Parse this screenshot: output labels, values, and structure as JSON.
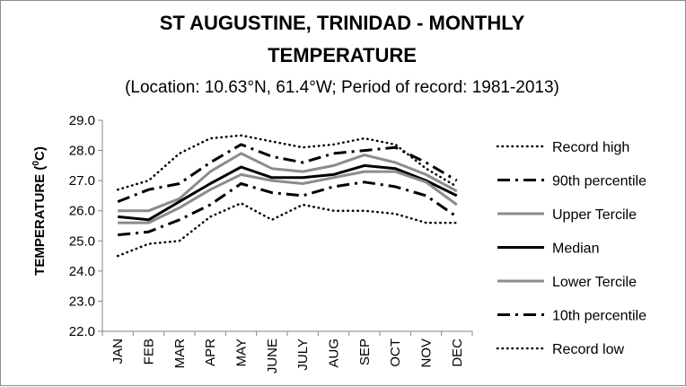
{
  "chart_data": {
    "type": "line",
    "title": "ST AUGUSTINE, TRINIDAD - MONTHLY TEMPERATURE",
    "title_lines": [
      "ST AUGUSTINE, TRINIDAD - MONTHLY",
      "TEMPERATURE"
    ],
    "subtitle": "(Location: 10.63°N, 61.4°W; Period of record: 1981-2013)",
    "ylabel": "TEMPERATURE (⁰C)",
    "ylabel_main": "TEMPERATURE (",
    "ylabel_sup": "0",
    "ylabel_close": "C)",
    "xlabel": "",
    "categories": [
      "JAN",
      "FEB",
      "MAR",
      "APR",
      "MAY",
      "JUNE",
      "JULY",
      "AUG",
      "SEP",
      "OCT",
      "NOV",
      "DEC"
    ],
    "ylim": [
      22.0,
      29.0
    ],
    "yticks": [
      "22.0",
      "23.0",
      "24.0",
      "25.0",
      "26.0",
      "27.0",
      "28.0",
      "29.0"
    ],
    "ytick_values": [
      22,
      23,
      24,
      25,
      26,
      27,
      28,
      29
    ],
    "grid": false,
    "legend_position": "right",
    "series": [
      {
        "name": "Record high",
        "style": "dotted",
        "color": "#000000",
        "values": [
          26.7,
          27.0,
          27.9,
          28.4,
          28.5,
          28.3,
          28.1,
          28.2,
          28.4,
          28.2,
          27.4,
          26.8
        ]
      },
      {
        "name": "90th percentile",
        "style": "dashdot",
        "color": "#000000",
        "values": [
          26.3,
          26.7,
          26.9,
          27.6,
          28.2,
          27.8,
          27.6,
          27.9,
          28.0,
          28.1,
          27.6,
          27.0
        ]
      },
      {
        "name": "Upper Tercile",
        "style": "solid",
        "color": "#8c8c8c",
        "values": [
          26.0,
          26.0,
          26.4,
          27.3,
          27.9,
          27.4,
          27.3,
          27.5,
          27.85,
          27.6,
          27.2,
          26.65
        ]
      },
      {
        "name": "Median",
        "style": "solid",
        "color": "#000000",
        "values": [
          25.8,
          25.7,
          26.3,
          26.9,
          27.45,
          27.1,
          27.1,
          27.2,
          27.5,
          27.4,
          27.0,
          26.5
        ]
      },
      {
        "name": "Lower Tercile",
        "style": "solid",
        "color": "#8c8c8c",
        "values": [
          25.6,
          25.6,
          26.1,
          26.7,
          27.2,
          27.0,
          26.9,
          27.1,
          27.3,
          27.3,
          26.95,
          26.2
        ]
      },
      {
        "name": "10th percentile",
        "style": "dashdot",
        "color": "#000000",
        "values": [
          25.2,
          25.3,
          25.7,
          26.2,
          26.9,
          26.6,
          26.5,
          26.8,
          26.95,
          26.8,
          26.5,
          25.8
        ]
      },
      {
        "name": "Record low",
        "style": "dotted",
        "color": "#000000",
        "values": [
          24.5,
          24.9,
          25.0,
          25.8,
          26.25,
          25.7,
          26.2,
          26.0,
          26.0,
          25.9,
          25.6,
          25.6
        ]
      }
    ]
  }
}
